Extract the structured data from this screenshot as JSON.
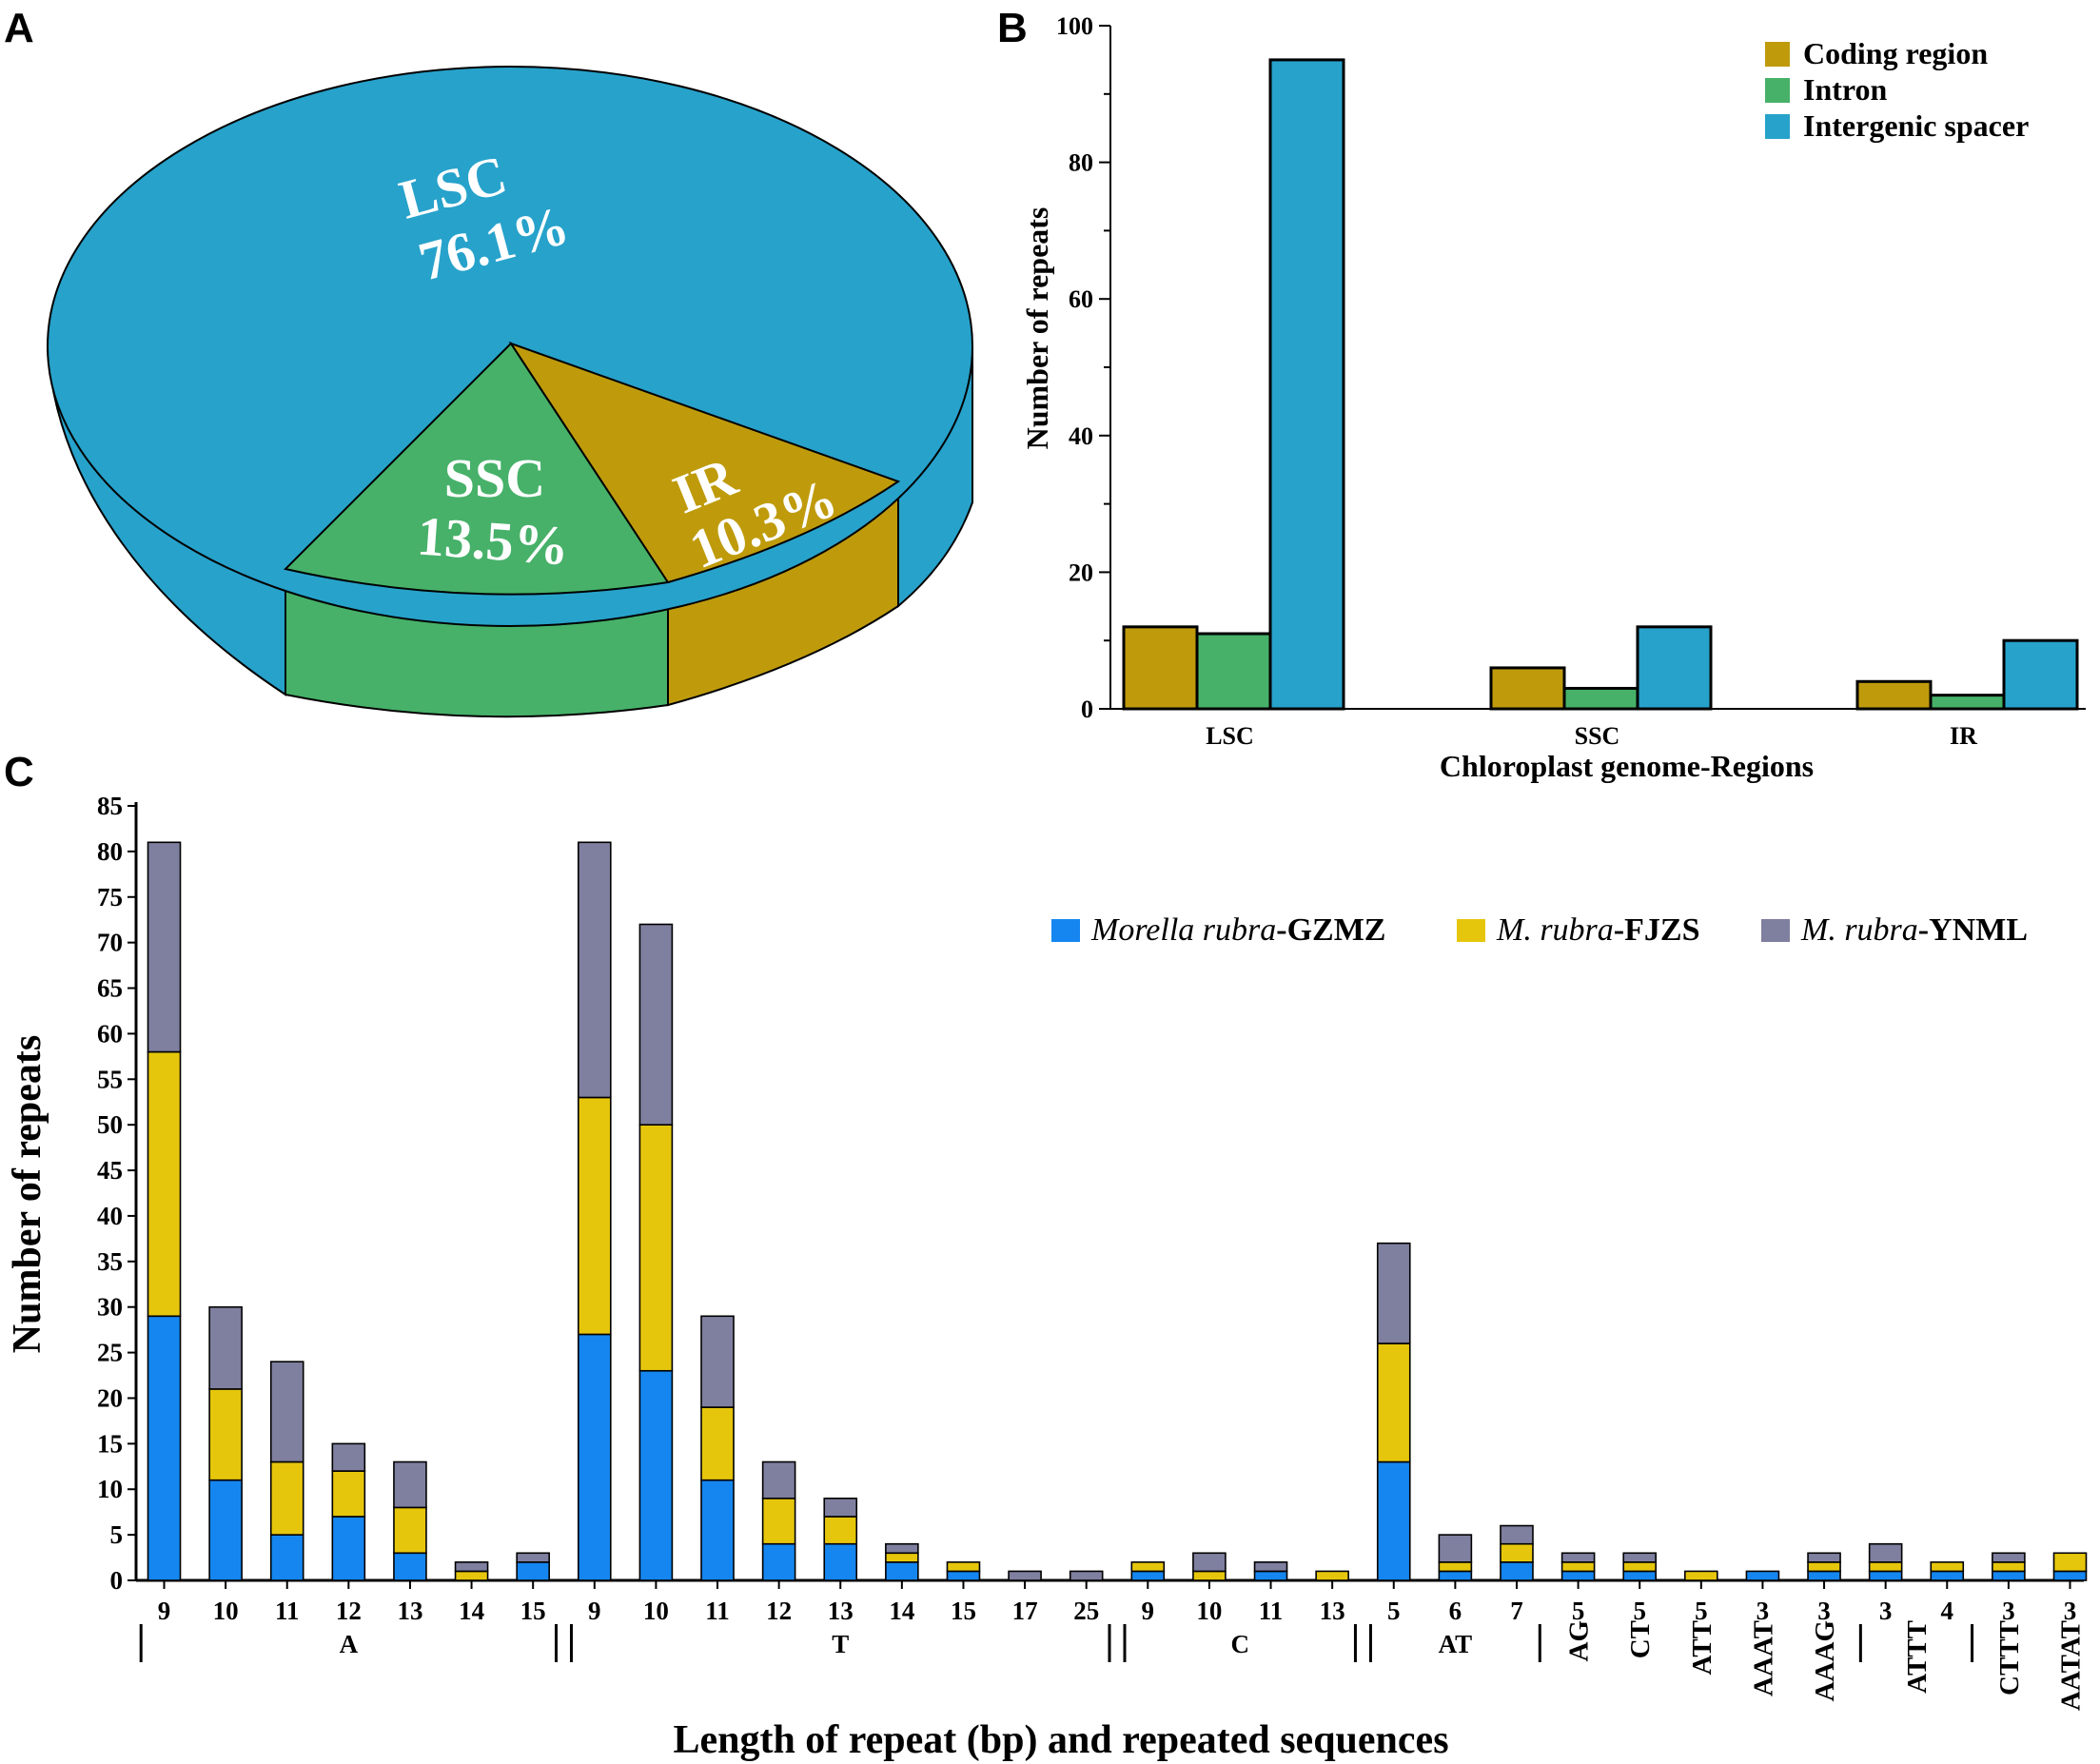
{
  "panels": {
    "a_letter": "A",
    "b_letter": "B",
    "c_letter": "C"
  },
  "pie": {
    "slices": [
      {
        "name": "LSC",
        "value": 76.1,
        "label": "76.1%",
        "color": "#27a2cb"
      },
      {
        "name": "SSC",
        "value": 13.5,
        "label": "13.5%",
        "color": "#47b169"
      },
      {
        "name": "IR",
        "value": 10.3,
        "label": "10.3%",
        "color": "#bf9b0c"
      }
    ]
  },
  "colors": {
    "coding": "#bf9b0c",
    "intron": "#47b169",
    "intergenic": "#27a2cb",
    "gzmz": "#1586ef",
    "fjzs": "#e6c60c",
    "ynml": "#7f7f9f"
  },
  "chart_data": [
    {
      "type": "bar",
      "panel": "B",
      "categories": [
        "LSC",
        "SSC",
        "IR"
      ],
      "series": [
        {
          "name": "Coding region",
          "values": [
            12,
            6,
            4
          ]
        },
        {
          "name": "Intron",
          "values": [
            11,
            3,
            2
          ]
        },
        {
          "name": "Intergenic spacer",
          "values": [
            95,
            12,
            10
          ]
        }
      ],
      "xlabel": "Chloroplast genome-Regions",
      "ylabel": "Number of repeats",
      "ylim": [
        0,
        100
      ],
      "yticks": [
        0,
        20,
        40,
        60,
        80,
        100
      ],
      "legend": "top-right"
    },
    {
      "type": "bar",
      "stacked": true,
      "panel": "C",
      "categories": [
        "9",
        "10",
        "11",
        "12",
        "13",
        "14",
        "15",
        "9",
        "10",
        "11",
        "12",
        "13",
        "14",
        "15",
        "17",
        "25",
        "9",
        "10",
        "11",
        "13",
        "5",
        "6",
        "7",
        "5",
        "5",
        "5",
        "3",
        "3",
        "3",
        "4",
        "3",
        "3"
      ],
      "series": [
        {
          "name_italic": "Morella rubra",
          "name_bold": "-GZMZ",
          "values": [
            29,
            11,
            5,
            7,
            3,
            0,
            2,
            27,
            23,
            11,
            4,
            4,
            2,
            1,
            0,
            0,
            1,
            0,
            1,
            0,
            13,
            1,
            2,
            1,
            1,
            0,
            1,
            1,
            1,
            1,
            1,
            1
          ]
        },
        {
          "name_italic": "M. rubra",
          "name_bold": "-FJZS",
          "values": [
            29,
            10,
            8,
            5,
            5,
            1,
            0,
            26,
            27,
            8,
            5,
            3,
            1,
            1,
            0,
            0,
            1,
            1,
            0,
            1,
            13,
            1,
            2,
            1,
            1,
            1,
            0,
            1,
            1,
            1,
            1,
            2
          ]
        },
        {
          "name_italic": "M. rubra",
          "name_bold": "-YNML",
          "values": [
            23,
            9,
            11,
            3,
            5,
            1,
            1,
            28,
            22,
            10,
            4,
            2,
            1,
            0,
            1,
            1,
            0,
            2,
            1,
            0,
            11,
            3,
            2,
            1,
            1,
            0,
            0,
            1,
            2,
            0,
            1,
            0
          ]
        }
      ],
      "groups": [
        {
          "label": "A",
          "range": [
            0,
            6
          ]
        },
        {
          "label": "T",
          "range": [
            7,
            15
          ]
        },
        {
          "label": "C",
          "range": [
            16,
            19
          ]
        },
        {
          "label": "AT",
          "range": [
            20,
            22
          ]
        }
      ],
      "sequence_labels": [
        {
          "label": "AG",
          "index": 23
        },
        {
          "label": "CT",
          "index": 24
        },
        {
          "label": "ATT",
          "index": 25
        },
        {
          "label": "AAAT",
          "index": 26
        },
        {
          "label": "AAAG",
          "index": 27
        },
        {
          "label": "ATTT",
          "range": [
            28,
            29
          ]
        },
        {
          "label": "CTTT",
          "index": 30
        },
        {
          "label": "AATAT",
          "index": 31
        }
      ],
      "xlabel": "Length of repeat (bp) and repeated sequences",
      "ylabel": "Number of repeats",
      "ylim": [
        0,
        85
      ],
      "yticks": [
        0,
        5,
        10,
        15,
        20,
        25,
        30,
        35,
        40,
        45,
        50,
        55,
        60,
        65,
        70,
        75,
        80,
        85
      ],
      "legend": "top-right"
    }
  ]
}
